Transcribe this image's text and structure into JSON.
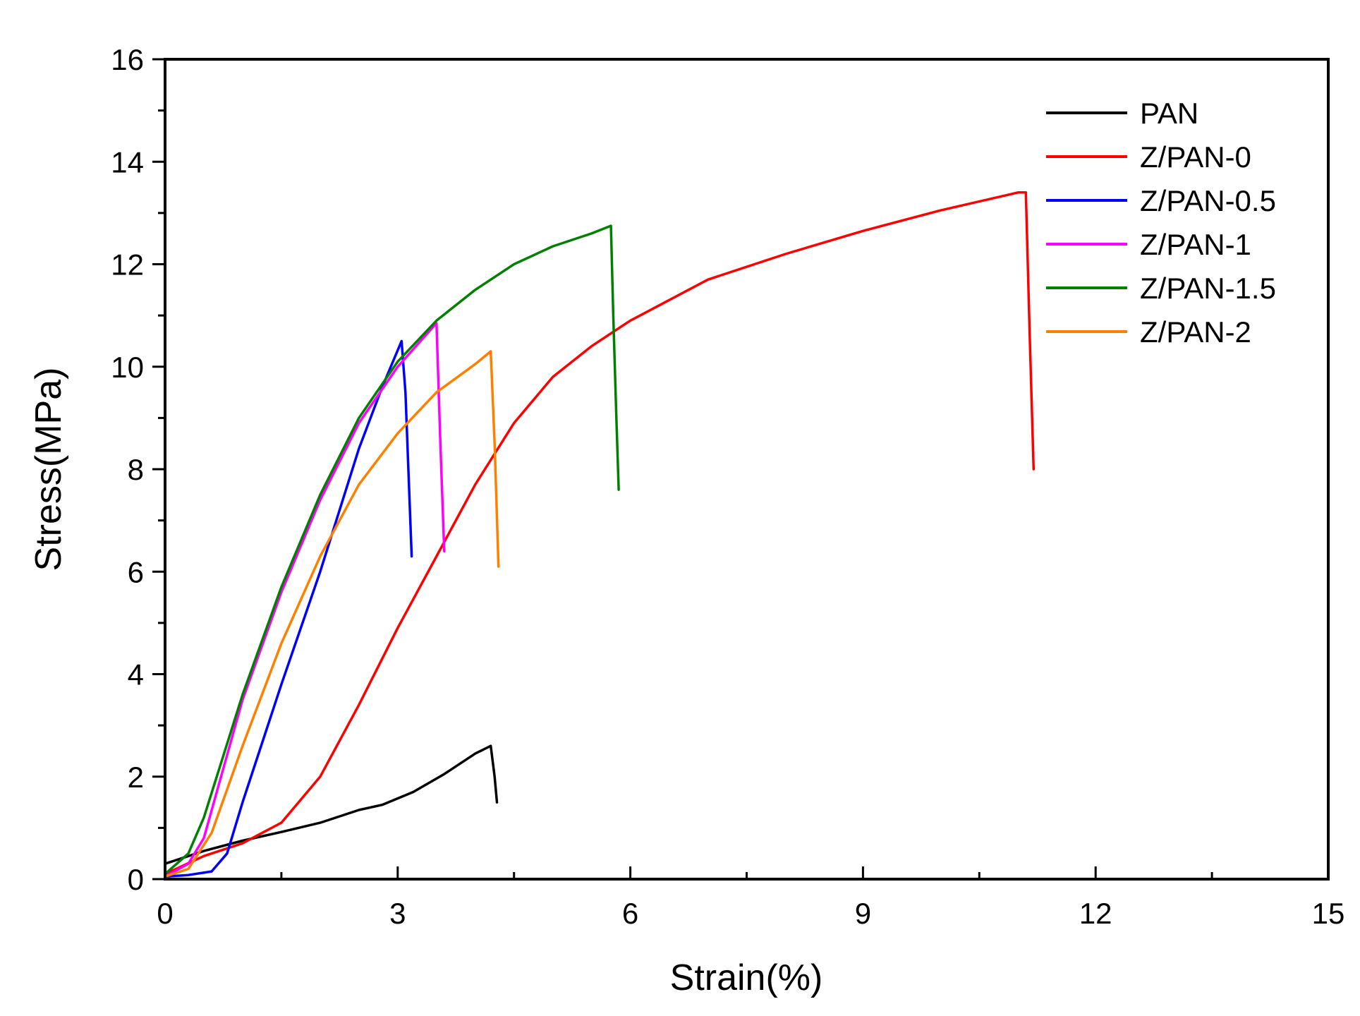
{
  "chart_data": {
    "type": "line",
    "title": "",
    "xlabel": "Strain(%)",
    "ylabel": "Stress(MPa)",
    "xlim": [
      0,
      15
    ],
    "ylim": [
      0,
      16
    ],
    "xticks": [
      0,
      3,
      6,
      9,
      12,
      15
    ],
    "yticks": [
      0,
      2,
      4,
      6,
      8,
      10,
      12,
      14,
      16
    ],
    "x_minor_step": 1.5,
    "y_minor_step": 1,
    "grid": false,
    "legend_position": "top-right",
    "series": [
      {
        "name": "PAN",
        "color": "#000000",
        "points": [
          [
            0,
            0.3
          ],
          [
            0.5,
            0.55
          ],
          [
            1.0,
            0.75
          ],
          [
            1.5,
            0.92
          ],
          [
            2.0,
            1.1
          ],
          [
            2.5,
            1.35
          ],
          [
            2.8,
            1.45
          ],
          [
            3.2,
            1.7
          ],
          [
            3.6,
            2.05
          ],
          [
            4.0,
            2.45
          ],
          [
            4.2,
            2.6
          ],
          [
            4.25,
            2.0
          ],
          [
            4.28,
            1.5
          ]
        ]
      },
      {
        "name": "Z/PAN-0",
        "color": "#ff0000",
        "points": [
          [
            0,
            0.1
          ],
          [
            0.5,
            0.45
          ],
          [
            1.0,
            0.7
          ],
          [
            1.5,
            1.1
          ],
          [
            2.0,
            2.0
          ],
          [
            2.5,
            3.4
          ],
          [
            3.0,
            4.9
          ],
          [
            3.5,
            6.3
          ],
          [
            4.0,
            7.7
          ],
          [
            4.5,
            8.9
          ],
          [
            5.0,
            9.8
          ],
          [
            5.5,
            10.4
          ],
          [
            6.0,
            10.9
          ],
          [
            7.0,
            11.7
          ],
          [
            8.0,
            12.2
          ],
          [
            9.0,
            12.65
          ],
          [
            10.0,
            13.05
          ],
          [
            11.0,
            13.4
          ],
          [
            11.1,
            13.4
          ],
          [
            11.15,
            10.6
          ],
          [
            11.2,
            8.0
          ]
        ]
      },
      {
        "name": "Z/PAN-0.5",
        "color": "#0000ff",
        "points": [
          [
            0,
            0.05
          ],
          [
            0.3,
            0.08
          ],
          [
            0.6,
            0.15
          ],
          [
            0.8,
            0.5
          ],
          [
            1.0,
            1.5
          ],
          [
            1.5,
            3.8
          ],
          [
            2.0,
            6.0
          ],
          [
            2.5,
            8.4
          ],
          [
            2.8,
            9.6
          ],
          [
            3.05,
            10.5
          ],
          [
            3.1,
            9.5
          ],
          [
            3.15,
            7.5
          ],
          [
            3.18,
            6.3
          ]
        ]
      },
      {
        "name": "Z/PAN-1",
        "color": "#ff00ff",
        "points": [
          [
            0,
            0.05
          ],
          [
            0.3,
            0.3
          ],
          [
            0.5,
            0.8
          ],
          [
            1.0,
            3.5
          ],
          [
            1.5,
            5.6
          ],
          [
            2.0,
            7.4
          ],
          [
            2.5,
            8.9
          ],
          [
            3.0,
            10.0
          ],
          [
            3.5,
            10.85
          ],
          [
            3.55,
            8.5
          ],
          [
            3.6,
            6.4
          ]
        ]
      },
      {
        "name": "Z/PAN-1.5",
        "color": "#008000",
        "points": [
          [
            0,
            0.1
          ],
          [
            0.3,
            0.5
          ],
          [
            0.5,
            1.2
          ],
          [
            1.0,
            3.6
          ],
          [
            1.5,
            5.7
          ],
          [
            2.0,
            7.5
          ],
          [
            2.5,
            9.0
          ],
          [
            3.0,
            10.1
          ],
          [
            3.5,
            10.9
          ],
          [
            4.0,
            11.5
          ],
          [
            4.5,
            12.0
          ],
          [
            5.0,
            12.35
          ],
          [
            5.5,
            12.6
          ],
          [
            5.75,
            12.75
          ],
          [
            5.78,
            11.0
          ],
          [
            5.82,
            9.0
          ],
          [
            5.85,
            7.6
          ]
        ]
      },
      {
        "name": "Z/PAN-2",
        "color": "#ff8000",
        "points": [
          [
            0,
            0.05
          ],
          [
            0.3,
            0.2
          ],
          [
            0.6,
            0.9
          ],
          [
            1.0,
            2.6
          ],
          [
            1.5,
            4.6
          ],
          [
            2.0,
            6.3
          ],
          [
            2.5,
            7.7
          ],
          [
            3.0,
            8.7
          ],
          [
            3.5,
            9.5
          ],
          [
            4.0,
            10.05
          ],
          [
            4.2,
            10.3
          ],
          [
            4.25,
            8.5
          ],
          [
            4.3,
            6.1
          ]
        ]
      }
    ]
  }
}
